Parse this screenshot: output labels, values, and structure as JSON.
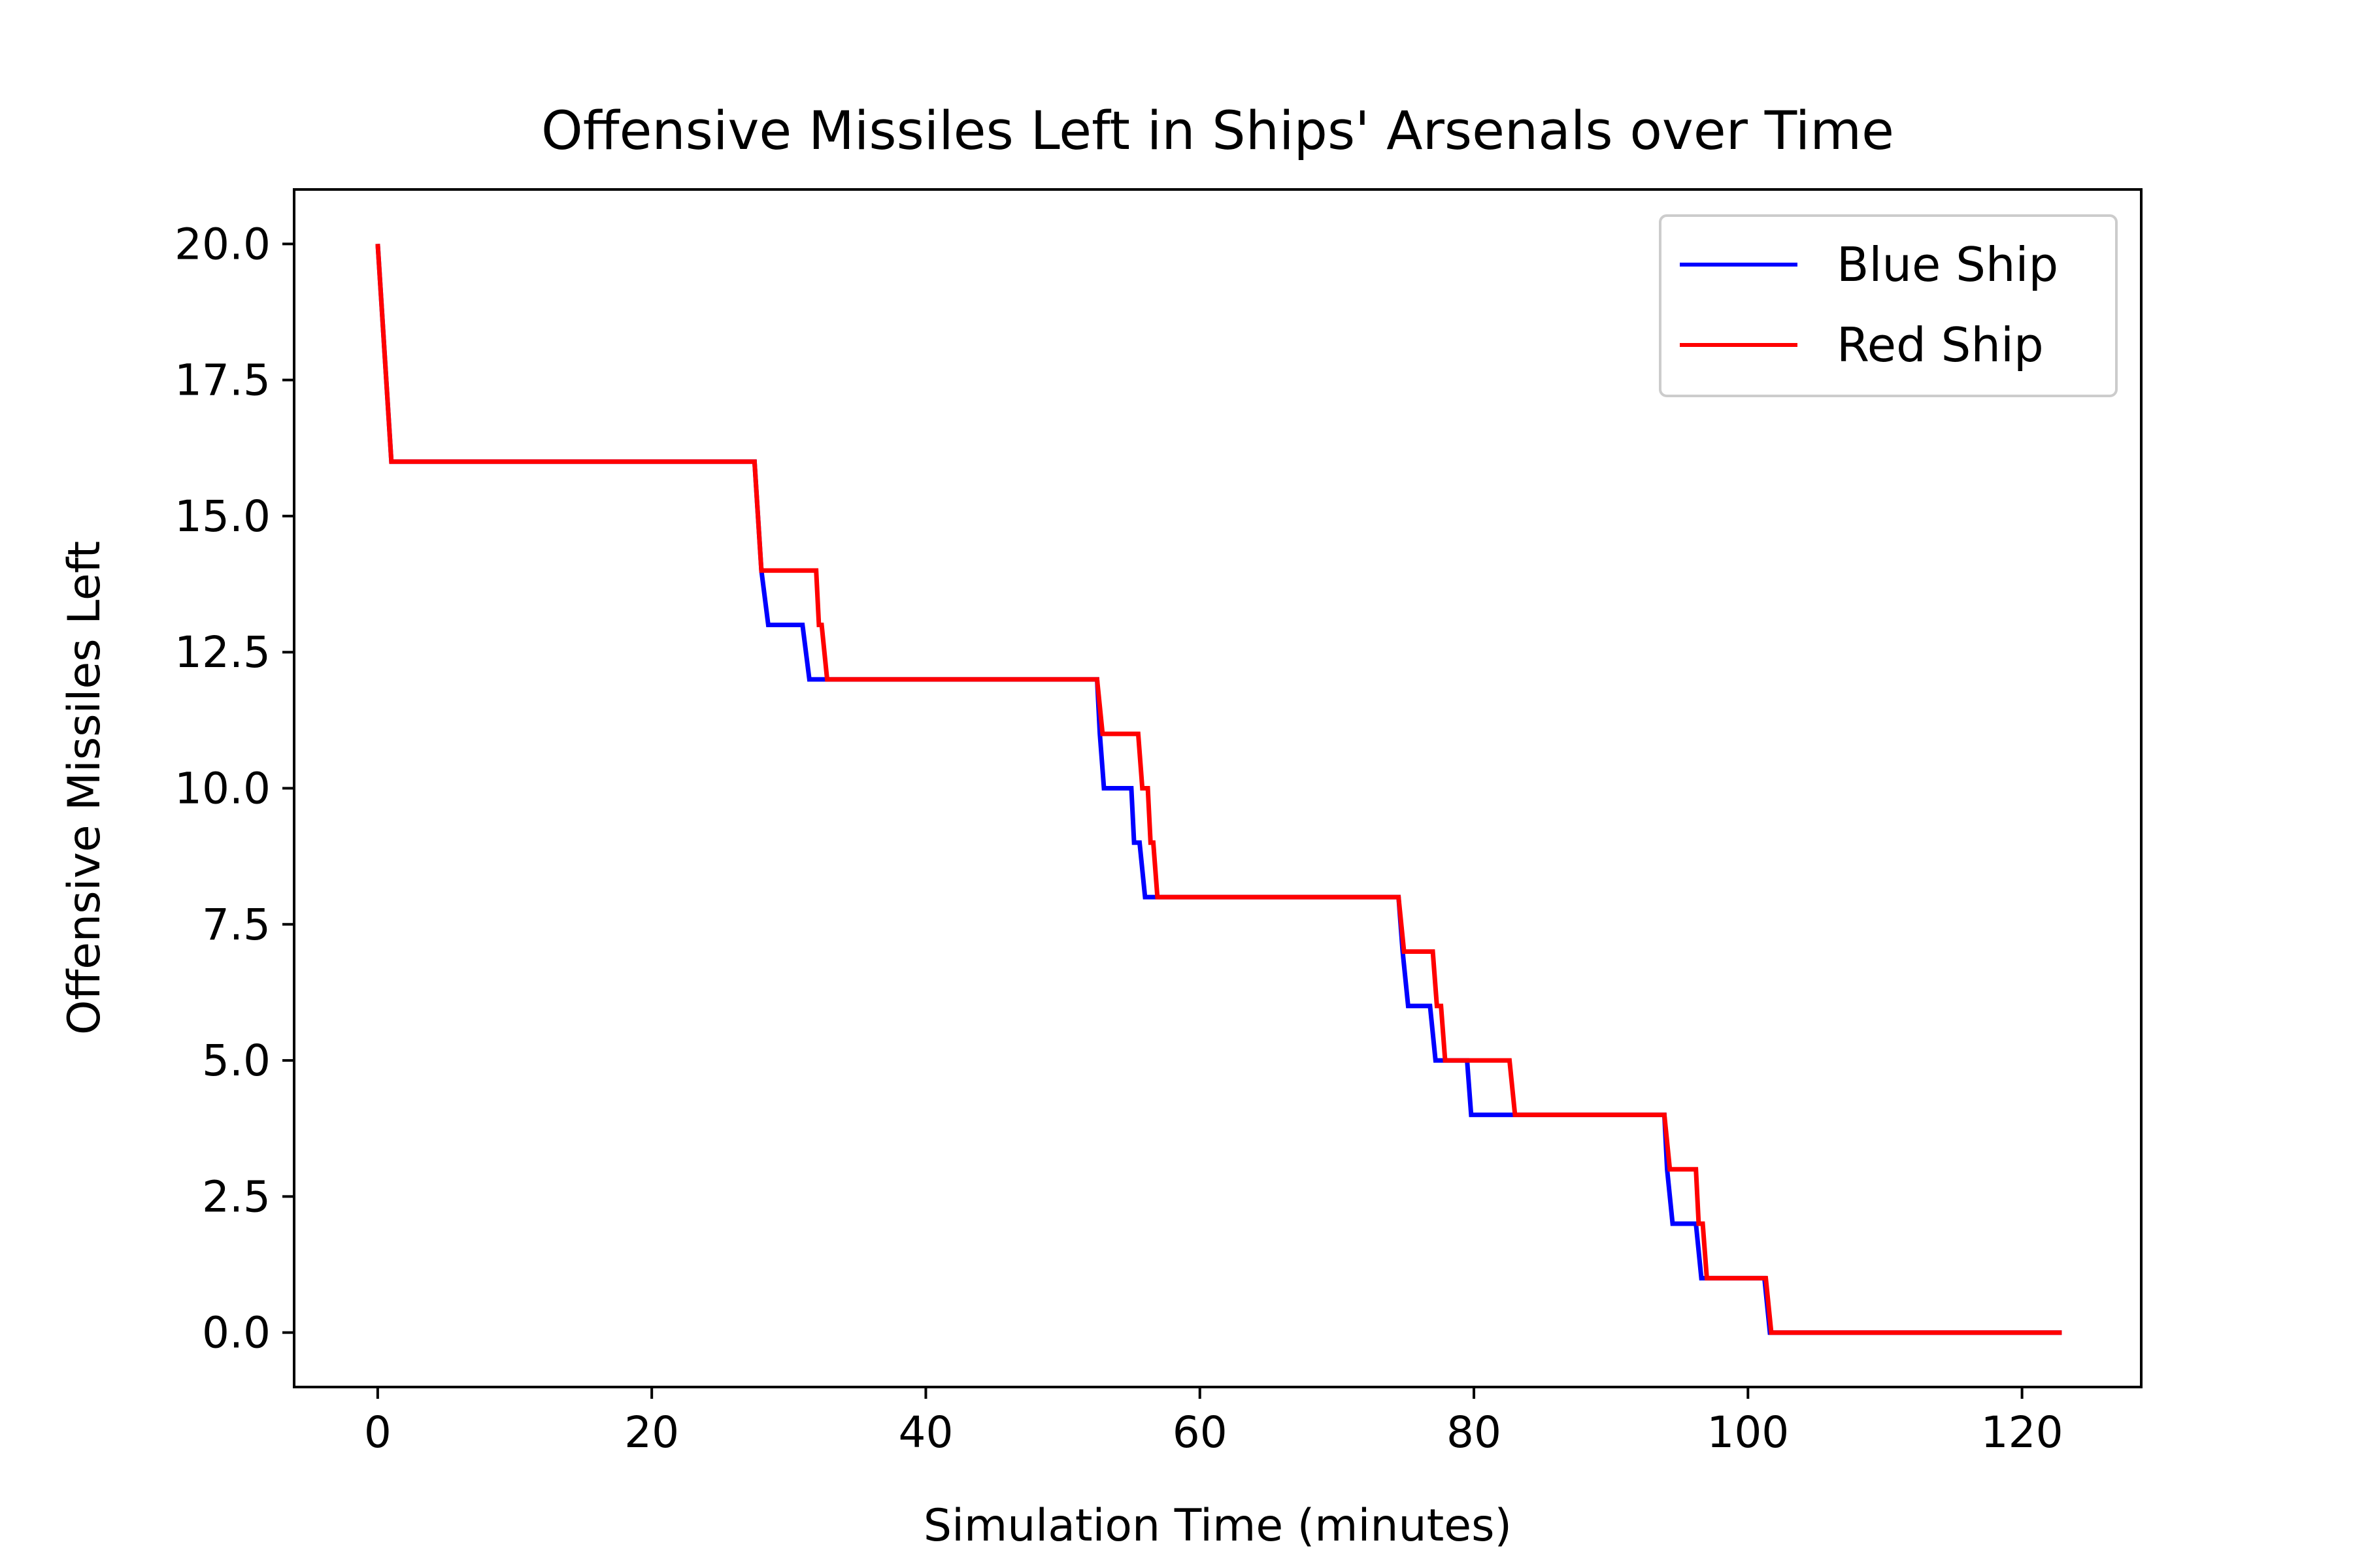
{
  "chart_data": {
    "type": "line",
    "title": "Offensive Missiles Left in Ships' Arsenals over Time",
    "xlabel": "Simulation Time (minutes)",
    "ylabel": "Offensive Missiles Left",
    "xlim": [
      -6.1,
      128.7
    ],
    "ylim": [
      -1.0,
      21.0
    ],
    "x_ticks": [
      0,
      20,
      40,
      60,
      80,
      100,
      120
    ],
    "x_tick_labels": [
      "0",
      "20",
      "40",
      "60",
      "80",
      "100",
      "120"
    ],
    "y_ticks": [
      0,
      2.5,
      5,
      7.5,
      10,
      12.5,
      15,
      17.5,
      20
    ],
    "y_tick_labels": [
      "0.0",
      "2.5",
      "5.0",
      "7.5",
      "10.0",
      "12.5",
      "15.0",
      "17.5",
      "20.0"
    ],
    "grid": false,
    "legend": {
      "position": "top-right",
      "entries": [
        "Blue Ship",
        "Red Ship"
      ]
    },
    "series": [
      {
        "name": "Blue Ship",
        "color": "#0000ff",
        "points": [
          [
            0,
            20
          ],
          [
            1.0,
            16
          ],
          [
            27.5,
            16
          ],
          [
            28.0,
            14
          ],
          [
            28.5,
            13
          ],
          [
            31.0,
            13
          ],
          [
            31.5,
            12
          ],
          [
            32.5,
            12
          ],
          [
            52.5,
            12
          ],
          [
            52.7,
            11
          ],
          [
            53.0,
            10
          ],
          [
            55.0,
            10
          ],
          [
            55.2,
            9
          ],
          [
            55.6,
            9
          ],
          [
            56.0,
            8
          ],
          [
            57.0,
            8
          ],
          [
            74.5,
            8
          ],
          [
            74.8,
            7
          ],
          [
            75.2,
            6
          ],
          [
            76.8,
            6
          ],
          [
            77.2,
            5
          ],
          [
            79.5,
            5
          ],
          [
            79.8,
            4
          ],
          [
            83.0,
            4
          ],
          [
            93.9,
            4
          ],
          [
            94.1,
            3
          ],
          [
            94.5,
            2
          ],
          [
            96.2,
            2
          ],
          [
            96.6,
            1
          ],
          [
            101.2,
            1
          ],
          [
            101.6,
            0
          ],
          [
            122.9,
            0
          ]
        ]
      },
      {
        "name": "Red Ship",
        "color": "#ff0000",
        "points": [
          [
            0,
            20
          ],
          [
            1.0,
            16
          ],
          [
            27.5,
            16
          ],
          [
            28.0,
            14
          ],
          [
            32.0,
            14
          ],
          [
            32.2,
            13
          ],
          [
            32.4,
            13
          ],
          [
            32.8,
            12
          ],
          [
            52.5,
            12
          ],
          [
            52.9,
            11
          ],
          [
            55.5,
            11
          ],
          [
            55.8,
            10
          ],
          [
            56.2,
            10
          ],
          [
            56.4,
            9
          ],
          [
            56.6,
            9
          ],
          [
            56.9,
            8
          ],
          [
            74.5,
            8
          ],
          [
            74.9,
            7
          ],
          [
            77.0,
            7
          ],
          [
            77.3,
            6
          ],
          [
            77.6,
            6
          ],
          [
            77.9,
            5
          ],
          [
            82.6,
            5
          ],
          [
            83.0,
            4
          ],
          [
            93.9,
            4
          ],
          [
            94.3,
            3
          ],
          [
            96.2,
            3
          ],
          [
            96.4,
            2
          ],
          [
            96.7,
            2
          ],
          [
            97.0,
            1
          ],
          [
            101.3,
            1
          ],
          [
            101.7,
            0
          ],
          [
            122.9,
            0
          ]
        ]
      }
    ]
  }
}
